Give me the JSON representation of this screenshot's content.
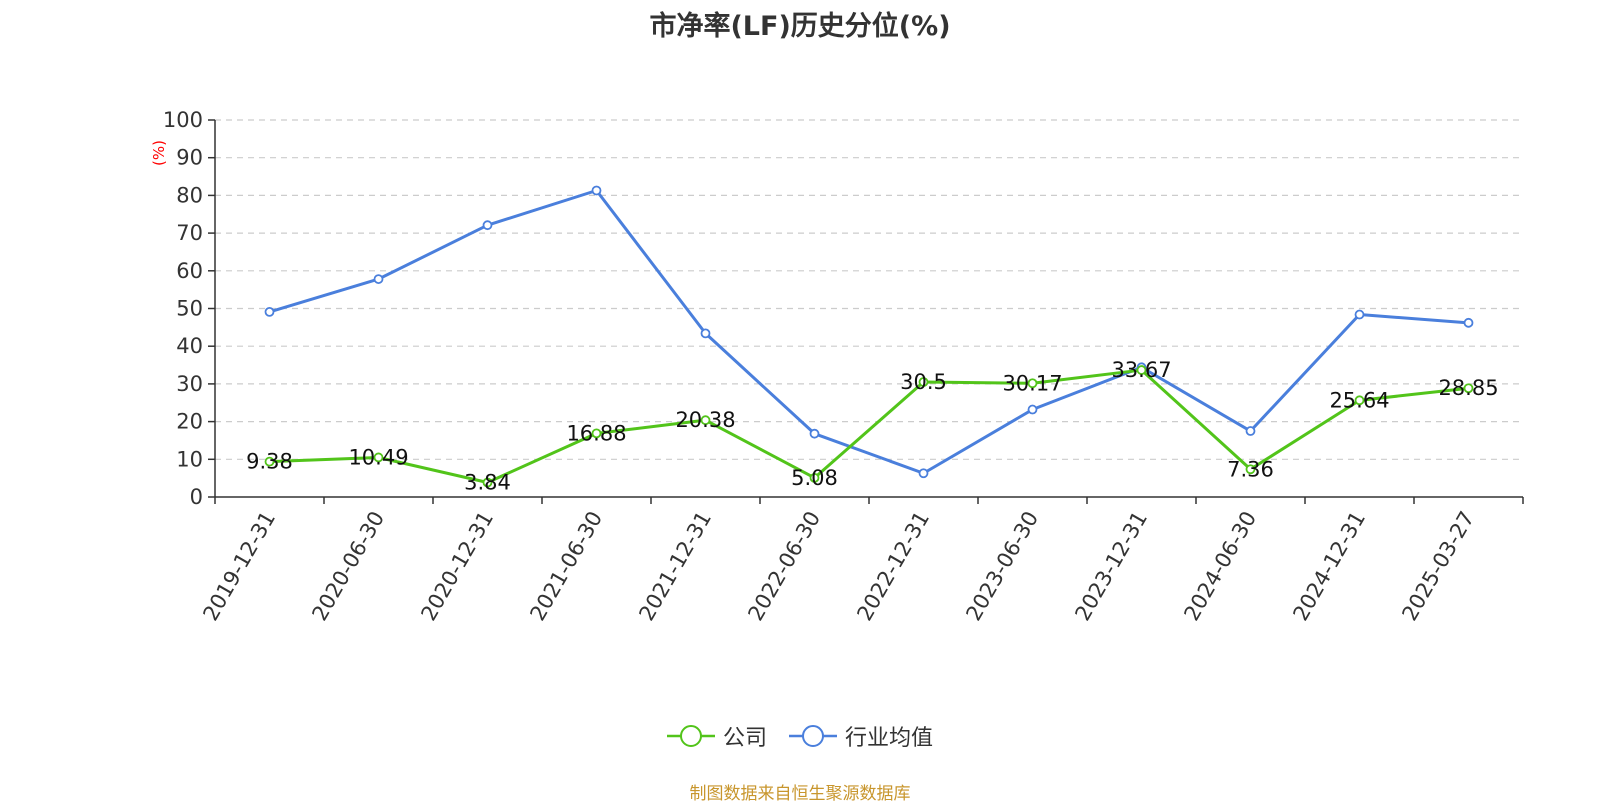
{
  "chart_data": {
    "type": "line",
    "title": "市净率(LF)历史分位(%)",
    "ylabel": "(%)",
    "ylim": [
      0,
      100
    ],
    "yticks": [
      "0",
      "10",
      "20",
      "30",
      "40",
      "50",
      "60",
      "70",
      "80",
      "90",
      "100"
    ],
    "categories": [
      "2019-12-31",
      "2020-06-30",
      "2020-12-31",
      "2021-06-30",
      "2021-12-31",
      "2022-06-30",
      "2022-12-31",
      "2023-06-30",
      "2023-12-31",
      "2024-06-30",
      "2024-12-31",
      "2025-03-27"
    ],
    "series": [
      {
        "name": "公司",
        "color": "#52c41a",
        "values": [
          9.38,
          10.49,
          3.84,
          16.88,
          20.38,
          5.08,
          30.5,
          30.17,
          33.67,
          7.36,
          25.64,
          28.85
        ],
        "labels": [
          "9.38",
          "10.49",
          "3.84",
          "16.88",
          "20.38",
          "5.08",
          "30.5",
          "30.17",
          "33.67",
          "7.36",
          "25.64",
          "28.85"
        ]
      },
      {
        "name": "行业均值",
        "color": "#4a7fdc",
        "values": [
          49.1,
          57.8,
          72.1,
          81.3,
          43.4,
          16.8,
          6.3,
          23.2,
          34.4,
          17.5,
          48.4,
          46.2
        ]
      }
    ],
    "grid": true,
    "legend_position": "bottom"
  },
  "footer": {
    "source": "制图数据来自恒生聚源数据库"
  }
}
